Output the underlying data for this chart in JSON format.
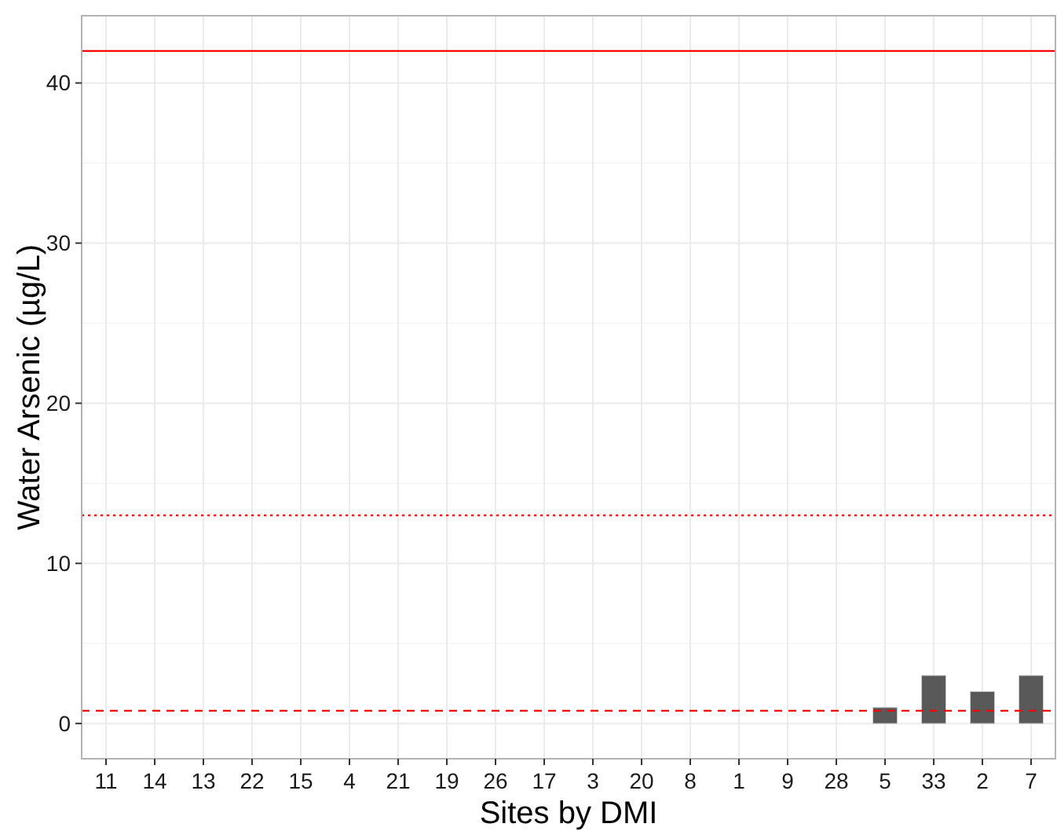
{
  "chart_data": {
    "type": "bar",
    "xlabel": "Sites by DMI",
    "ylabel": "Water Arsenic (µg/L)",
    "categories": [
      "11",
      "14",
      "13",
      "22",
      "15",
      "4",
      "21",
      "19",
      "26",
      "17",
      "3",
      "20",
      "8",
      "1",
      "9",
      "28",
      "5",
      "33",
      "2",
      "7"
    ],
    "values": [
      0,
      0,
      0,
      0,
      0,
      0,
      0,
      0,
      0,
      0,
      0,
      0,
      0,
      0,
      0,
      0,
      1,
      3,
      2,
      3
    ],
    "color": "#595959",
    "ylim": [
      -2.2,
      44.2
    ],
    "yticks": [
      0,
      10,
      20,
      30,
      40
    ],
    "grid": true,
    "ref_lines": [
      {
        "axis": "y",
        "value": 42,
        "color": "#ff0000",
        "line_style": "solid"
      },
      {
        "axis": "y",
        "value": 13,
        "color": "#ff0000",
        "line_style": "dotted"
      },
      {
        "axis": "y",
        "value": 0.8,
        "color": "#ff0000",
        "line_style": "dashed"
      }
    ]
  }
}
